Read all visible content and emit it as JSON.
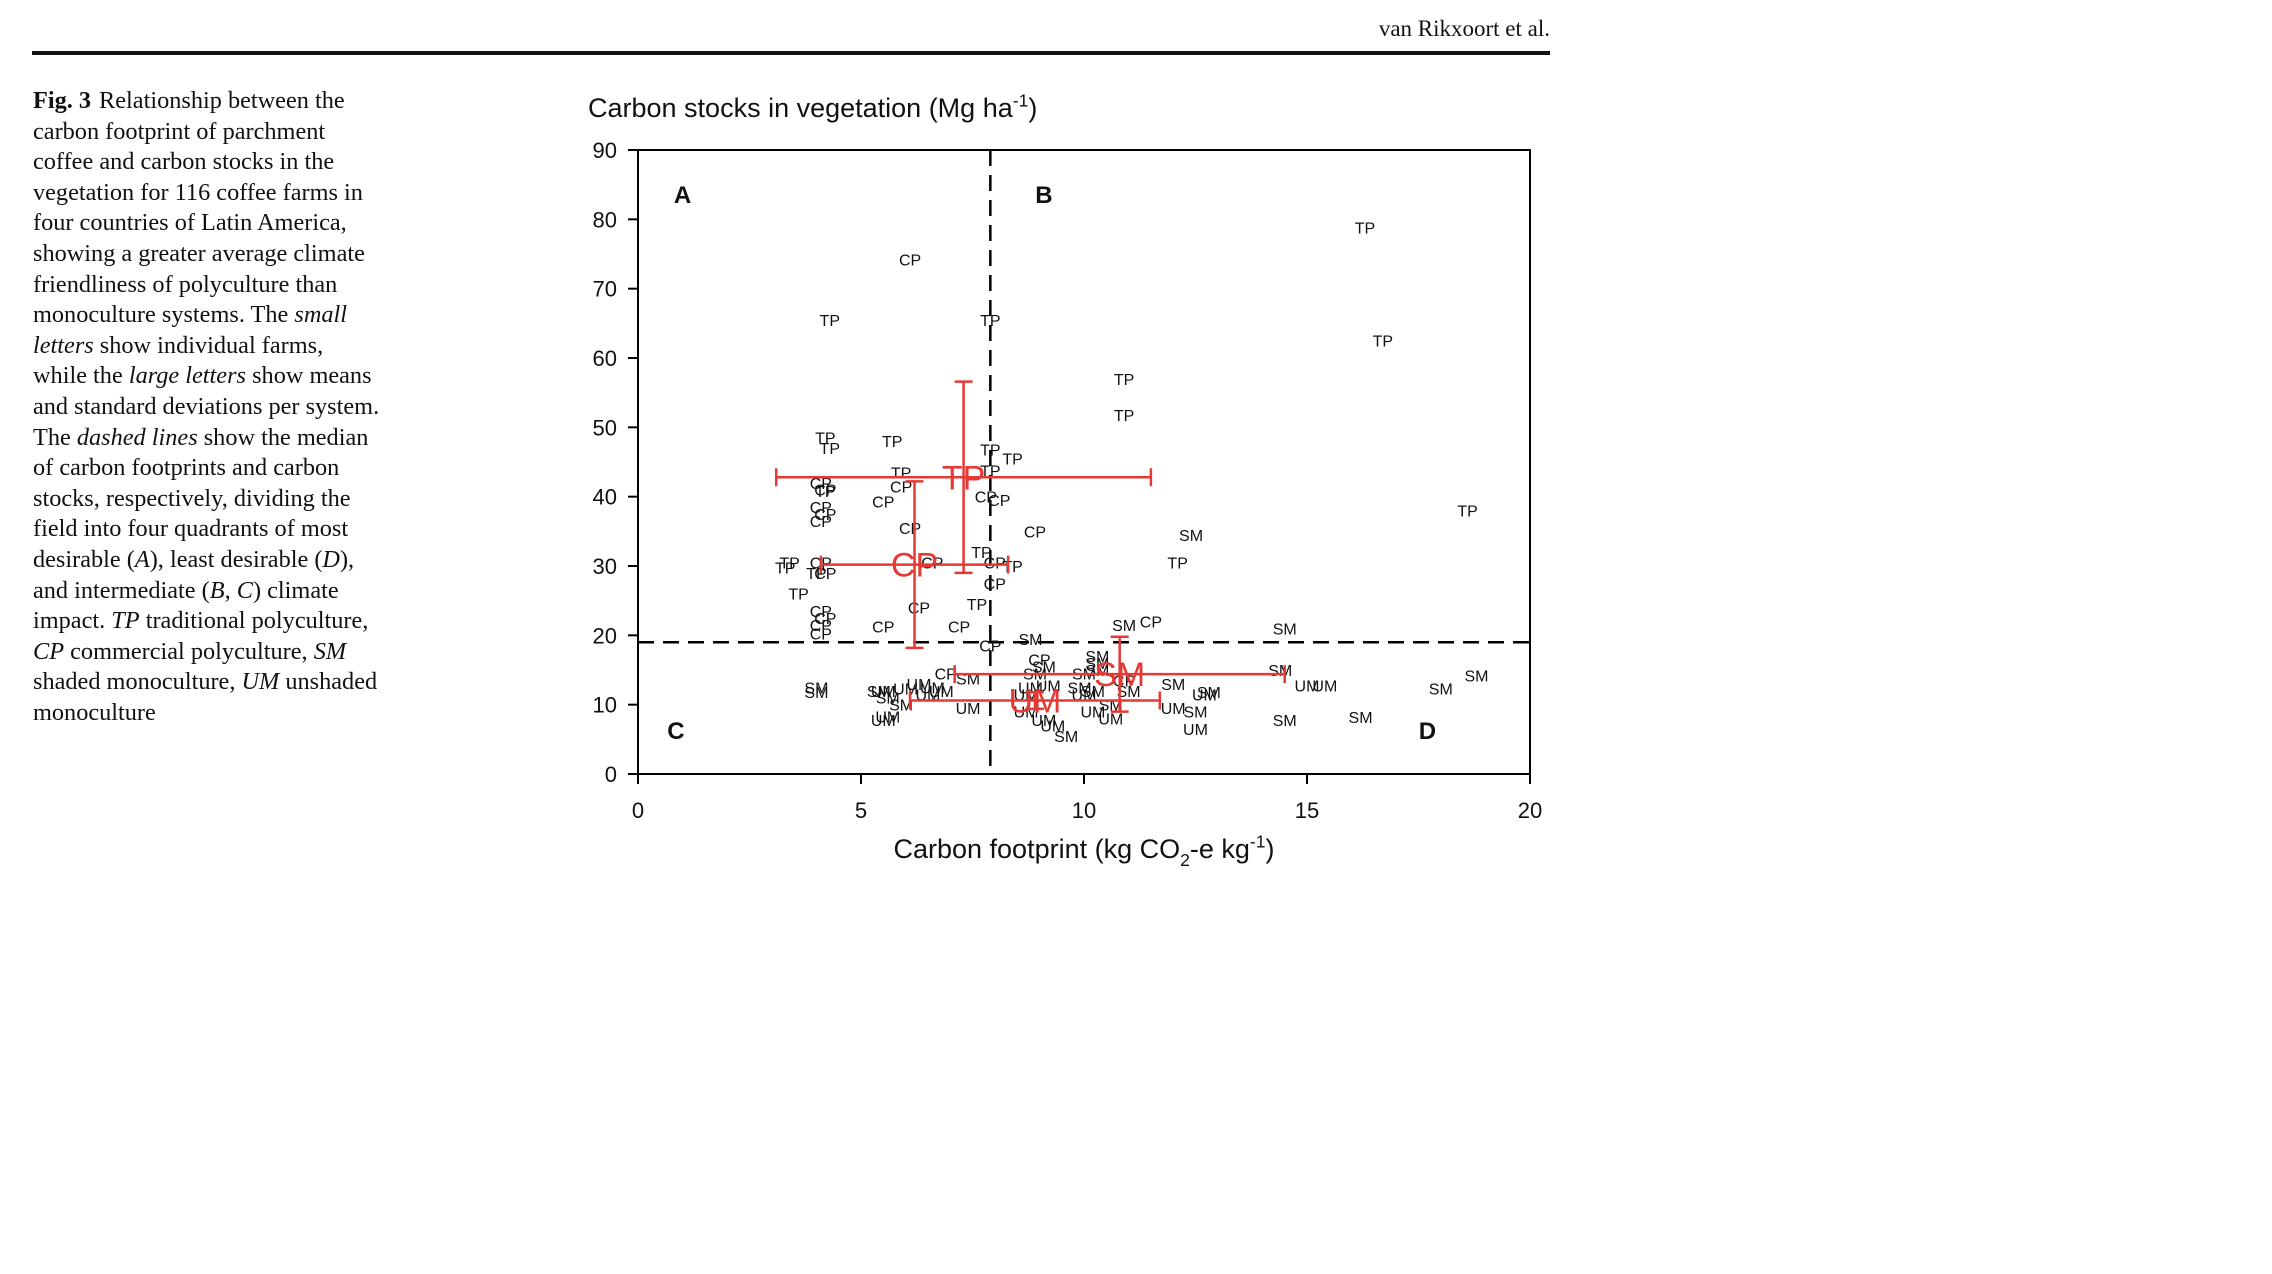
{
  "header": {
    "running_head": "van Rikxoort et al."
  },
  "caption": {
    "label": "Fig. 3",
    "segments": [
      {
        "t": "Relationship between the carbon footprint of parchment coffee and carbon stocks in the vegetation for 116 coffee farms in four countries of Latin America, showing a greater average climate friendliness of polyculture than monoculture systems. The ",
        "i": false
      },
      {
        "t": "small letters",
        "i": true
      },
      {
        "t": " show individual farms, while the ",
        "i": false
      },
      {
        "t": "large letters",
        "i": true
      },
      {
        "t": " show means and standard deviations per system. The ",
        "i": false
      },
      {
        "t": "dashed lines",
        "i": true
      },
      {
        "t": " show the median of carbon footprints and carbon stocks, respectively, dividing the field into four quadrants of most desirable (",
        "i": false
      },
      {
        "t": "A",
        "i": true
      },
      {
        "t": "), least desirable (",
        "i": false
      },
      {
        "t": "D",
        "i": true
      },
      {
        "t": "), and intermediate (",
        "i": false
      },
      {
        "t": "B",
        "i": true
      },
      {
        "t": ", ",
        "i": false
      },
      {
        "t": "C",
        "i": true
      },
      {
        "t": ") climate impact. ",
        "i": false
      },
      {
        "t": "TP",
        "i": true
      },
      {
        "t": " traditional polyculture, ",
        "i": false
      },
      {
        "t": "CP",
        "i": true
      },
      {
        "t": " commercial polyculture, ",
        "i": false
      },
      {
        "t": "SM",
        "i": true
      },
      {
        "t": " shaded monoculture, ",
        "i": false
      },
      {
        "t": "UM",
        "i": true
      },
      {
        "t": " unshaded monoculture",
        "i": false
      }
    ]
  },
  "chart_data": {
    "type": "scatter",
    "title": "Carbon stocks in vegetation (Mg ha-1)",
    "xlabel": "Carbon footprint (kg CO2-e kg-1)",
    "xlim": [
      0,
      20
    ],
    "ylim": [
      0,
      90
    ],
    "xticks": [
      0,
      5,
      10,
      15,
      20
    ],
    "yticks": [
      0,
      10,
      20,
      30,
      40,
      50,
      60,
      70,
      80,
      90
    ],
    "median_lines": {
      "x": 7.9,
      "y": 19.0
    },
    "quadrant_labels": [
      {
        "label": "A",
        "x": 1.0,
        "y": 83.5
      },
      {
        "label": "B",
        "x": 9.1,
        "y": 83.5
      },
      {
        "label": "C",
        "x": 0.85,
        "y": 6.2
      },
      {
        "label": "D",
        "x": 17.7,
        "y": 6.2
      }
    ],
    "colors": {
      "points": "#111111",
      "means": "#e53935"
    },
    "points": [
      {
        "l": "TP",
        "x": 16.3,
        "y": 78.8
      },
      {
        "l": "TP",
        "x": 16.7,
        "y": 62.5
      },
      {
        "l": "TP",
        "x": 18.6,
        "y": 38.0
      },
      {
        "l": "TP",
        "x": 4.3,
        "y": 65.5
      },
      {
        "l": "TP",
        "x": 7.9,
        "y": 65.5
      },
      {
        "l": "TP",
        "x": 10.9,
        "y": 57.0
      },
      {
        "l": "TP",
        "x": 10.9,
        "y": 51.8
      },
      {
        "l": "TP",
        "x": 4.2,
        "y": 48.5
      },
      {
        "l": "TP",
        "x": 4.3,
        "y": 47.0
      },
      {
        "l": "TP",
        "x": 5.7,
        "y": 48.0
      },
      {
        "l": "TP",
        "x": 7.9,
        "y": 46.8
      },
      {
        "l": "TP",
        "x": 8.4,
        "y": 45.5
      },
      {
        "l": "TP",
        "x": 5.9,
        "y": 43.5
      },
      {
        "l": "TP",
        "x": 7.9,
        "y": 43.8
      },
      {
        "l": "TP",
        "x": 4.2,
        "y": 40.8
      },
      {
        "l": "TP",
        "x": 3.4,
        "y": 30.5
      },
      {
        "l": "TP",
        "x": 3.3,
        "y": 29.8
      },
      {
        "l": "TP",
        "x": 4.0,
        "y": 29.0
      },
      {
        "l": "TP",
        "x": 7.7,
        "y": 32.0
      },
      {
        "l": "TP",
        "x": 8.4,
        "y": 30.0
      },
      {
        "l": "TP",
        "x": 12.1,
        "y": 30.5
      },
      {
        "l": "TP",
        "x": 3.6,
        "y": 26.0
      },
      {
        "l": "TP",
        "x": 7.6,
        "y": 24.5
      },
      {
        "l": "CP",
        "x": 6.1,
        "y": 74.2
      },
      {
        "l": "CP",
        "x": 4.1,
        "y": 42.0
      },
      {
        "l": "CP",
        "x": 4.2,
        "y": 41.0
      },
      {
        "l": "CP",
        "x": 5.9,
        "y": 41.5
      },
      {
        "l": "CP",
        "x": 5.5,
        "y": 39.3
      },
      {
        "l": "CP",
        "x": 7.8,
        "y": 40.0
      },
      {
        "l": "CP",
        "x": 8.1,
        "y": 39.5
      },
      {
        "l": "CP",
        "x": 4.1,
        "y": 38.5
      },
      {
        "l": "CP",
        "x": 4.2,
        "y": 37.5
      },
      {
        "l": "CP",
        "x": 4.1,
        "y": 36.5
      },
      {
        "l": "CP",
        "x": 6.1,
        "y": 35.5
      },
      {
        "l": "CP",
        "x": 8.9,
        "y": 35.0
      },
      {
        "l": "CP",
        "x": 4.1,
        "y": 30.5
      },
      {
        "l": "CP",
        "x": 4.2,
        "y": 29.0
      },
      {
        "l": "CP",
        "x": 6.6,
        "y": 30.5
      },
      {
        "l": "CP",
        "x": 8.0,
        "y": 30.5
      },
      {
        "l": "CP",
        "x": 8.0,
        "y": 27.5
      },
      {
        "l": "CP",
        "x": 6.3,
        "y": 24.0
      },
      {
        "l": "CP",
        "x": 4.1,
        "y": 23.5
      },
      {
        "l": "CP",
        "x": 4.2,
        "y": 22.5
      },
      {
        "l": "CP",
        "x": 4.1,
        "y": 21.5
      },
      {
        "l": "CP",
        "x": 4.1,
        "y": 20.3
      },
      {
        "l": "CP",
        "x": 5.5,
        "y": 21.3
      },
      {
        "l": "CP",
        "x": 7.2,
        "y": 21.3
      },
      {
        "l": "CP",
        "x": 11.5,
        "y": 22.0
      },
      {
        "l": "CP",
        "x": 7.9,
        "y": 18.5
      },
      {
        "l": "CP",
        "x": 9.0,
        "y": 16.5
      },
      {
        "l": "CP",
        "x": 6.9,
        "y": 14.5
      },
      {
        "l": "CP",
        "x": 10.9,
        "y": 13.5
      },
      {
        "l": "SM",
        "x": 12.4,
        "y": 34.5
      },
      {
        "l": "SM",
        "x": 10.9,
        "y": 21.5
      },
      {
        "l": "SM",
        "x": 14.5,
        "y": 21.0
      },
      {
        "l": "SM",
        "x": 8.8,
        "y": 19.5
      },
      {
        "l": "SM",
        "x": 9.1,
        "y": 15.5
      },
      {
        "l": "SM",
        "x": 8.9,
        "y": 14.5
      },
      {
        "l": "SM",
        "x": 10.3,
        "y": 17.0
      },
      {
        "l": "SM",
        "x": 10.3,
        "y": 16.0
      },
      {
        "l": "SM",
        "x": 10.3,
        "y": 15.0
      },
      {
        "l": "SM",
        "x": 10.0,
        "y": 14.5
      },
      {
        "l": "SM",
        "x": 7.4,
        "y": 13.8
      },
      {
        "l": "SM",
        "x": 14.4,
        "y": 15.0
      },
      {
        "l": "SM",
        "x": 4.0,
        "y": 12.5
      },
      {
        "l": "SM",
        "x": 4.0,
        "y": 11.8
      },
      {
        "l": "SM",
        "x": 5.4,
        "y": 12.0
      },
      {
        "l": "SM",
        "x": 5.6,
        "y": 11.0
      },
      {
        "l": "SM",
        "x": 5.9,
        "y": 10.0
      },
      {
        "l": "SM",
        "x": 9.9,
        "y": 12.5
      },
      {
        "l": "SM",
        "x": 10.2,
        "y": 12.0
      },
      {
        "l": "SM",
        "x": 11.0,
        "y": 12.0
      },
      {
        "l": "SM",
        "x": 10.6,
        "y": 10.0
      },
      {
        "l": "SM",
        "x": 12.0,
        "y": 13.0
      },
      {
        "l": "SM",
        "x": 12.8,
        "y": 11.8
      },
      {
        "l": "SM",
        "x": 12.5,
        "y": 9.0
      },
      {
        "l": "SM",
        "x": 18.0,
        "y": 12.3
      },
      {
        "l": "SM",
        "x": 18.8,
        "y": 14.2
      },
      {
        "l": "SM",
        "x": 14.5,
        "y": 7.8
      },
      {
        "l": "SM",
        "x": 16.2,
        "y": 8.2
      },
      {
        "l": "SM",
        "x": 9.6,
        "y": 5.5
      },
      {
        "l": "UM",
        "x": 5.5,
        "y": 12.0
      },
      {
        "l": "UM",
        "x": 6.0,
        "y": 12.3
      },
      {
        "l": "UM",
        "x": 6.3,
        "y": 13.0
      },
      {
        "l": "UM",
        "x": 6.6,
        "y": 12.5
      },
      {
        "l": "UM",
        "x": 6.8,
        "y": 12.0
      },
      {
        "l": "UM",
        "x": 6.5,
        "y": 11.5
      },
      {
        "l": "UM",
        "x": 5.6,
        "y": 8.3
      },
      {
        "l": "UM",
        "x": 5.5,
        "y": 7.8
      },
      {
        "l": "UM",
        "x": 7.4,
        "y": 9.5
      },
      {
        "l": "UM",
        "x": 8.8,
        "y": 12.5
      },
      {
        "l": "UM",
        "x": 9.2,
        "y": 12.8
      },
      {
        "l": "UM",
        "x": 8.7,
        "y": 11.5
      },
      {
        "l": "UM",
        "x": 8.7,
        "y": 9.0
      },
      {
        "l": "UM",
        "x": 9.1,
        "y": 7.8
      },
      {
        "l": "UM",
        "x": 9.3,
        "y": 7.0
      },
      {
        "l": "UM",
        "x": 10.0,
        "y": 11.5
      },
      {
        "l": "UM",
        "x": 10.2,
        "y": 9.0
      },
      {
        "l": "UM",
        "x": 10.6,
        "y": 8.0
      },
      {
        "l": "UM",
        "x": 12.0,
        "y": 9.5
      },
      {
        "l": "UM",
        "x": 12.7,
        "y": 11.5
      },
      {
        "l": "UM",
        "x": 12.5,
        "y": 6.5
      },
      {
        "l": "UM",
        "x": 15.0,
        "y": 12.8
      },
      {
        "l": "UM",
        "x": 15.4,
        "y": 12.8
      }
    ],
    "means": [
      {
        "l": "TP",
        "x": 7.3,
        "y": 42.8,
        "xsd": 4.2,
        "ysd": 13.8
      },
      {
        "l": "CP",
        "x": 6.2,
        "y": 30.2,
        "xsd": 2.1,
        "ysd": 12.0
      },
      {
        "l": "SM",
        "x": 10.8,
        "y": 14.4,
        "xsd": 3.7,
        "ysd": 5.4
      },
      {
        "l": "UM",
        "x": 8.9,
        "y": 10.6,
        "xsd": 2.8,
        "ysd": 1.2
      }
    ]
  }
}
